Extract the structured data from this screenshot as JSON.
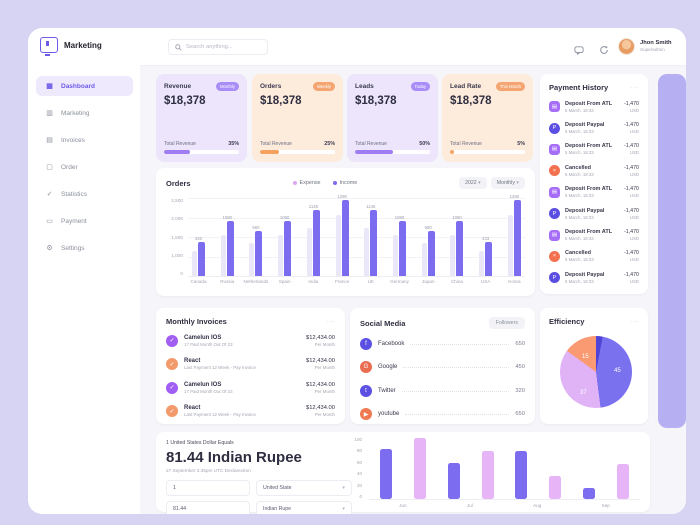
{
  "colors": {
    "accent_purple": "#7b6cf0",
    "accent_peach": "#f4a571",
    "page_background": "#d7d3f3",
    "expense_bar": "#eae8f8",
    "pink_bar": "#e7b4f7"
  },
  "sidebar": {
    "logo_label": "Marketing",
    "items": [
      {
        "label": "Dashboard",
        "icon": "dashboard-icon",
        "glyph": "▦",
        "active": true
      },
      {
        "label": "Marketing",
        "icon": "marketing-icon",
        "glyph": "▥",
        "active": false
      },
      {
        "label": "Invoices",
        "icon": "invoices-icon",
        "glyph": "▤",
        "active": false
      },
      {
        "label": "Order",
        "icon": "order-icon",
        "glyph": "▢",
        "active": false
      },
      {
        "label": "Statistics",
        "icon": "statistics-icon",
        "glyph": "✓",
        "active": false
      },
      {
        "label": "Payment",
        "icon": "payment-icon",
        "glyph": "▭",
        "active": false
      },
      {
        "label": "Settings",
        "icon": "settings-icon",
        "glyph": "⚙",
        "active": false
      }
    ]
  },
  "header": {
    "search_placeholder": "Search anything...",
    "user": {
      "name": "Jhon Smith",
      "role": "Superadmin"
    }
  },
  "stat_cards": [
    {
      "title": "Revenue",
      "badge": "Monthly",
      "value": "$18,378",
      "footer_label": "Total Revenue",
      "percent_label": "35%",
      "percent": 35,
      "theme": "purple"
    },
    {
      "title": "Orders",
      "badge": "Weekly",
      "value": "$18,378",
      "footer_label": "Total Revenue",
      "percent_label": "25%",
      "percent": 25,
      "theme": "orange"
    },
    {
      "title": "Leads",
      "badge": "Today",
      "value": "$18,378",
      "footer_label": "Total Revenue",
      "percent_label": "50%",
      "percent": 50,
      "theme": "purple"
    },
    {
      "title": "Lead Rate",
      "badge": "This Month",
      "value": "$18,378",
      "footer_label": "Total Revenue",
      "percent_label": "5%",
      "percent": 5,
      "theme": "orange"
    }
  ],
  "orders_chart": {
    "type": "bar",
    "title": "Orders",
    "legend": [
      {
        "label": "Expense",
        "color": "#d9a9f5"
      },
      {
        "label": "Income",
        "color": "#7b6cf0"
      }
    ],
    "filters": [
      {
        "label": "2022"
      },
      {
        "label": "Monthly"
      }
    ],
    "y_ticks": [
      "2,500",
      "2,000",
      "1,500",
      "1,000",
      "0"
    ],
    "y_max": 2500,
    "categories": [
      "Canada",
      "Russia",
      "Netherlands",
      "Spain",
      "India",
      "France",
      "UK",
      "Germany",
      "Japan",
      "China",
      "USA",
      "Korea"
    ],
    "bar_labels": [
      "420",
      "1080",
      "660",
      "1060",
      "1145",
      "1290",
      "1145",
      "1080",
      "680",
      "1080",
      "433",
      "1280"
    ],
    "series": [
      {
        "name": "Income",
        "values": [
          1100,
          1750,
          1450,
          1750,
          2100,
          2450,
          2100,
          1750,
          1450,
          1750,
          1100,
          2450
        ]
      },
      {
        "name": "Expense",
        "values": [
          800,
          1300,
          1050,
          1300,
          1550,
          1950,
          1550,
          1300,
          1050,
          1300,
          800,
          1950
        ]
      }
    ]
  },
  "payment_history": {
    "title": "Payment History",
    "menu": "···",
    "items": [
      {
        "title": "Deposit From ATL",
        "date": "5 March, 18:33",
        "amount": "-1,470",
        "currency": "USD",
        "type": "atl",
        "icon": "card-icon",
        "glyph": "▤"
      },
      {
        "title": "Deposit Paypal",
        "date": "5 March, 18:33",
        "amount": "-1,470",
        "currency": "USD",
        "type": "paypal",
        "icon": "paypal-icon",
        "glyph": "P"
      },
      {
        "title": "Deposit From ATL",
        "date": "5 March, 18:33",
        "amount": "-1,470",
        "currency": "USD",
        "type": "atl",
        "icon": "card-icon",
        "glyph": "▤"
      },
      {
        "title": "Cancelled",
        "date": "5 March, 18:33",
        "amount": "-1,470",
        "currency": "USD",
        "type": "cancel",
        "icon": "cancel-icon",
        "glyph": "×"
      },
      {
        "title": "Deposit From ATL",
        "date": "5 March, 18:33",
        "amount": "-1,470",
        "currency": "USD",
        "type": "atl",
        "icon": "card-icon",
        "glyph": "▤"
      },
      {
        "title": "Deposit Paypal",
        "date": "5 March, 18:33",
        "amount": "-1,470",
        "currency": "USD",
        "type": "paypal",
        "icon": "paypal-icon",
        "glyph": "P"
      },
      {
        "title": "Deposit From ATL",
        "date": "5 March, 18:33",
        "amount": "-1,470",
        "currency": "USD",
        "type": "atl",
        "icon": "card-icon",
        "glyph": "▤"
      },
      {
        "title": "Cancelled",
        "date": "5 March, 18:33",
        "amount": "-1,470",
        "currency": "USD",
        "type": "cancel",
        "icon": "cancel-icon",
        "glyph": "×"
      },
      {
        "title": "Deposit Paypal",
        "date": "5 March, 18:33",
        "amount": "-1,470",
        "currency": "USD",
        "type": "paypal",
        "icon": "paypal-icon",
        "glyph": "P"
      }
    ]
  },
  "monthly_invoices": {
    "title": "Monthly Invoices",
    "menu": "···",
    "items": [
      {
        "name": "Camelun IOS",
        "subtitle": "17 Paid Month Out Of 23",
        "amount": "$12,434.00",
        "period": "Per Month",
        "theme": "purple"
      },
      {
        "name": "React",
        "subtitle": "Last Payment 12 Week - Pay Invoice",
        "amount": "$12,434.00",
        "period": "Per Month",
        "theme": "orange"
      },
      {
        "name": "Camelun IOS",
        "subtitle": "17 Paid Month Out Of 23",
        "amount": "$12,434.00",
        "period": "Per Month",
        "theme": "purple"
      },
      {
        "name": "React",
        "subtitle": "Last Payment 12 Week - Pay Invoice",
        "amount": "$12,434.00",
        "period": "Per Month",
        "theme": "orange"
      }
    ]
  },
  "social_media": {
    "title": "Social Media",
    "button": "Followers",
    "items": [
      {
        "name": "Facebook",
        "value": "650",
        "icon": "facebook-icon",
        "glyph": "f",
        "color": "#5b50e2"
      },
      {
        "name": "Google",
        "value": "450",
        "icon": "google-icon",
        "glyph": "G",
        "color": "#ea6d52"
      },
      {
        "name": "Twitter",
        "value": "320",
        "icon": "twitter-icon",
        "glyph": "t",
        "color": "#5b50e2"
      },
      {
        "name": "youtube",
        "value": "650",
        "icon": "youtube-icon",
        "glyph": "▶",
        "color": "#ef7950"
      }
    ]
  },
  "efficiency": {
    "title": "Efficiency",
    "menu": "···",
    "type": "pie",
    "slices": [
      {
        "label": "",
        "value": 3,
        "color": "#4f43d8"
      },
      {
        "label": "45",
        "value": 45,
        "color": "#7a71ef"
      },
      {
        "label": "37",
        "value": 37,
        "color": "#e0b3f7"
      },
      {
        "label": "15",
        "value": 15,
        "color": "#f99a73"
      }
    ]
  },
  "currency": {
    "line1": "1 United States Dollar Equals",
    "headline": "81.44 Indian Rupee",
    "subtitle": "27 September 2:45pm UTC Declarection",
    "amount_from": "1",
    "unit_from": "United State",
    "amount_to": "81.44",
    "unit_to": "Indian Rupe",
    "chart": {
      "type": "bar",
      "y_ticks": [
        "100",
        "80",
        "60",
        "40",
        "20",
        "0"
      ],
      "y_max": 100,
      "months": [
        "Jun",
        "Jul",
        "Aug",
        "Sep"
      ],
      "bars": [
        {
          "value": 80,
          "color": "indigo"
        },
        {
          "value": 98,
          "color": "pink"
        },
        {
          "value": 58,
          "color": "indigo"
        },
        {
          "value": 77,
          "color": "pink"
        },
        {
          "value": 77,
          "color": "indigo"
        },
        {
          "value": 37,
          "color": "pink"
        },
        {
          "value": 18,
          "color": "indigo"
        },
        {
          "value": 56,
          "color": "pink"
        }
      ]
    }
  }
}
